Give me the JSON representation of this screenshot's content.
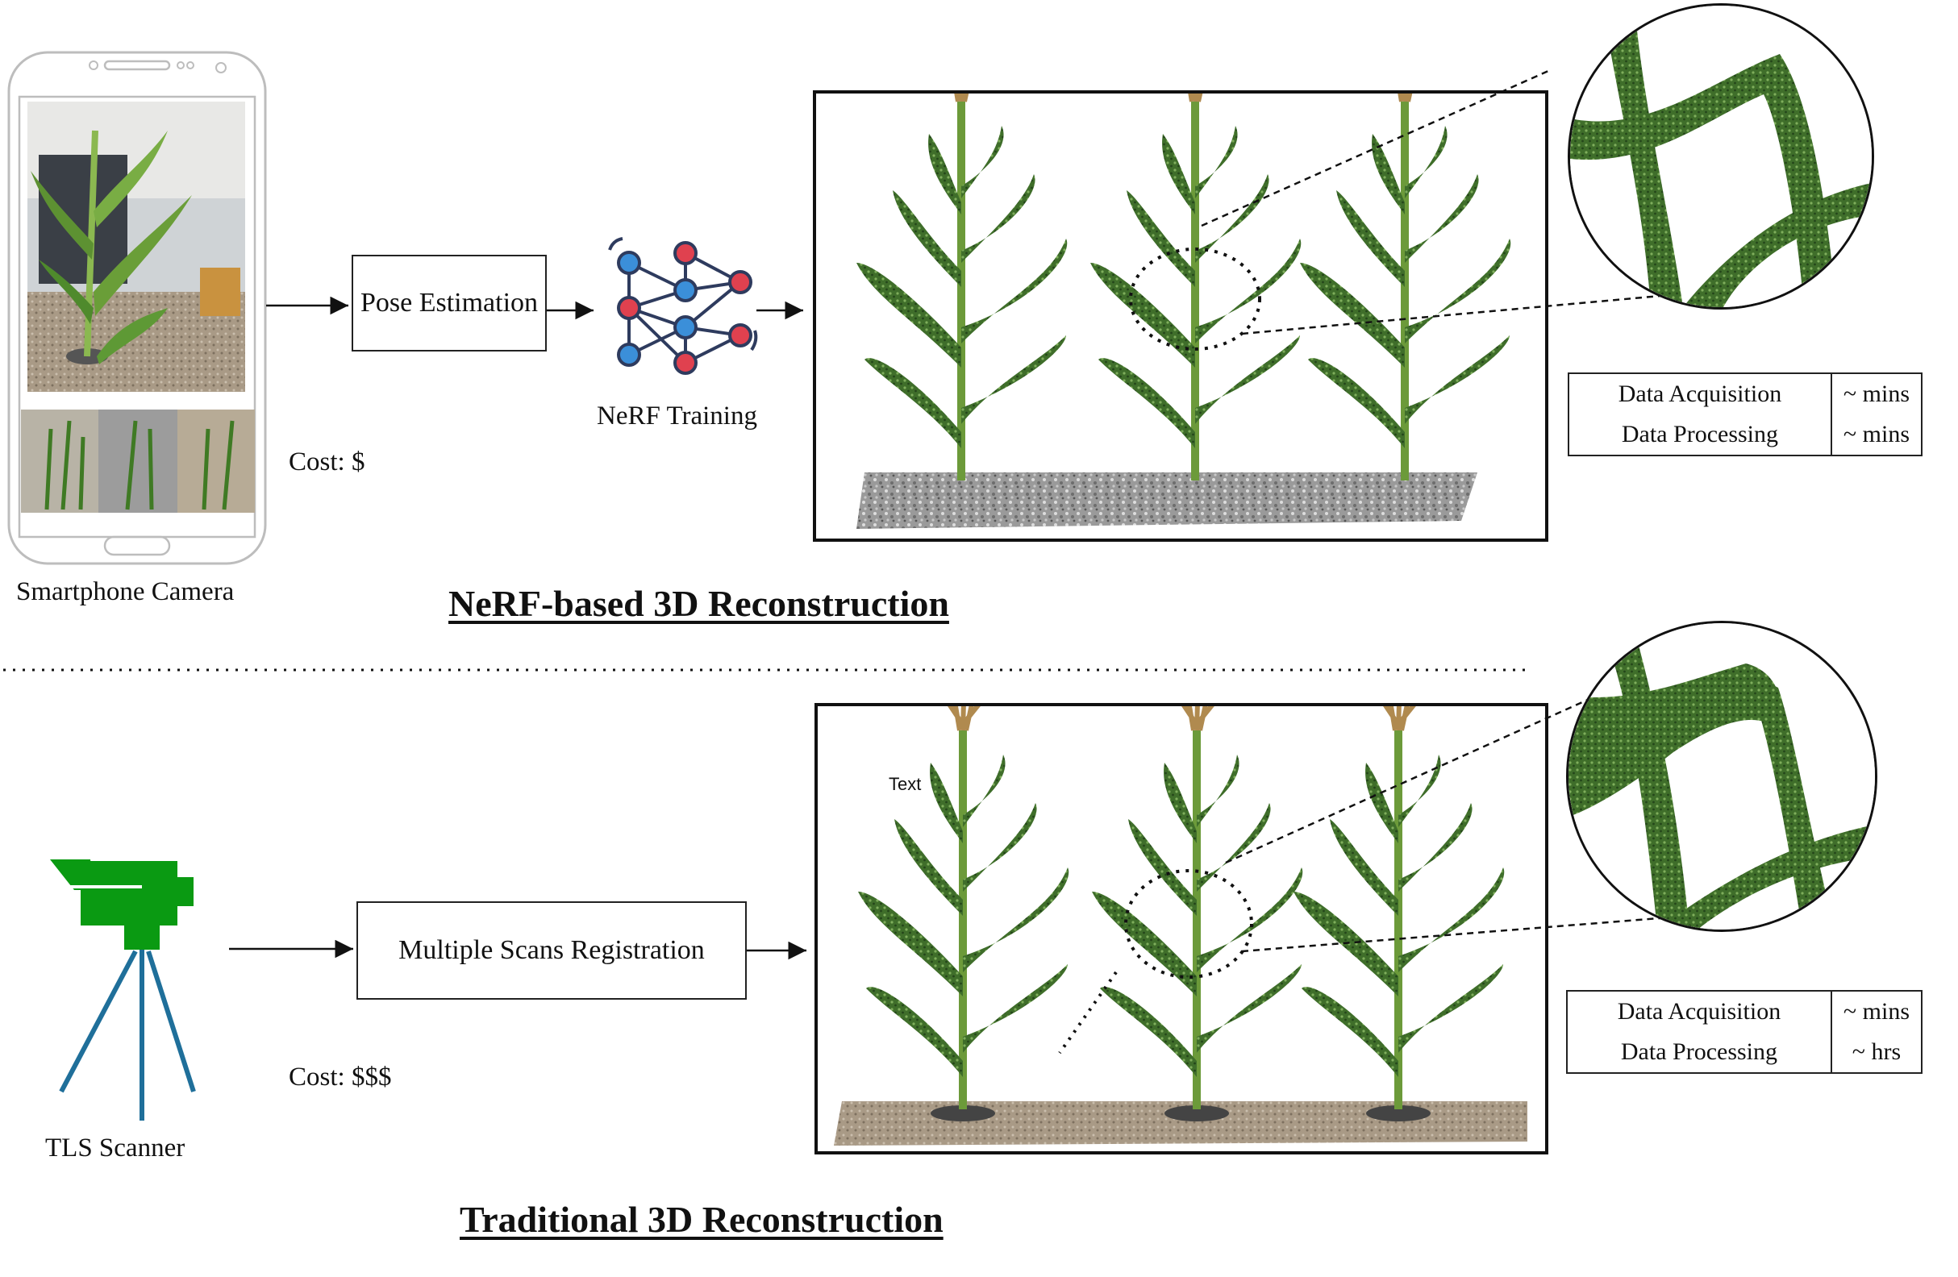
{
  "top": {
    "smartphone_label": "Smartphone Camera",
    "cost_label": "Cost: $",
    "pose_estimation_label": "Pose Estimation",
    "nerf_training_label": "NeRF Training",
    "title": "NeRF-based 3D Reconstruction",
    "metrics": [
      {
        "name": "Data Acquisition",
        "value": "~ mins"
      },
      {
        "name": "Data Processing",
        "value": "~ mins"
      }
    ]
  },
  "bottom": {
    "scanner_label": "TLS Scanner",
    "cost_label": "Cost: $$$",
    "registration_label": "Multiple Scans Registration",
    "annotation_text": "Text",
    "title": "Traditional 3D Reconstruction",
    "metrics": [
      {
        "name": "Data Acquisition",
        "value": "~ mins"
      },
      {
        "name": "Data Processing",
        "value": "~ hrs"
      }
    ]
  },
  "colors": {
    "scanner_green": "#0a9a12",
    "tripod_blue": "#1f6f9a",
    "node_blue": "#3b8fd9",
    "node_red": "#e0414f",
    "plant_green": "#3f6e2a"
  }
}
